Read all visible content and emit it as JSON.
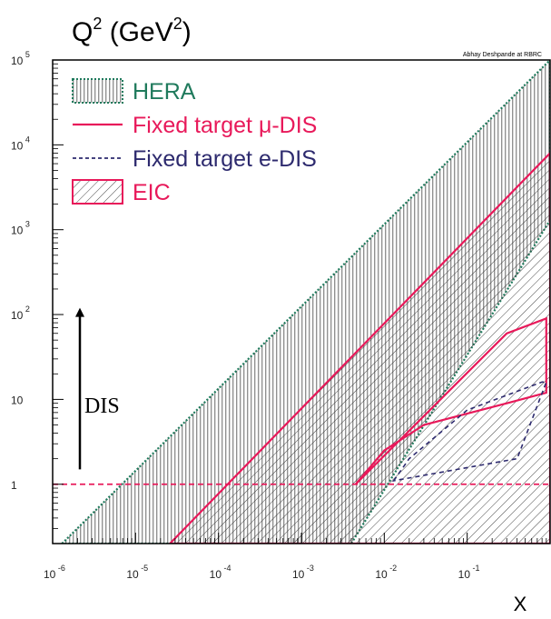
{
  "chart_data": {
    "type": "area",
    "title": "Q",
    "title_sup1": "2",
    "title_unit_pre": " (GeV",
    "title_sup2": "2",
    "title_unit_post": ")",
    "xlabel": "X",
    "ylabel": "",
    "credit": "Abhay Deshpande at RBRC",
    "x_scale": "log",
    "y_scale": "log",
    "xlim": [
      1e-06,
      1
    ],
    "ylim": [
      0.2,
      100000
    ],
    "x_ticks": [
      {
        "value": 1e-06,
        "base": "10",
        "exp": "-6"
      },
      {
        "value": 1e-05,
        "base": "10",
        "exp": "-5"
      },
      {
        "value": 0.0001,
        "base": "10",
        "exp": "-4"
      },
      {
        "value": 0.001,
        "base": "10",
        "exp": "-3"
      },
      {
        "value": 0.01,
        "base": "10",
        "exp": "-2"
      },
      {
        "value": 0.1,
        "base": "10",
        "exp": "-1"
      }
    ],
    "y_ticks": [
      {
        "value": 1,
        "base": "1",
        "exp": ""
      },
      {
        "value": 10,
        "base": "10",
        "exp": ""
      },
      {
        "value": 100,
        "base": "10",
        "exp": "2"
      },
      {
        "value": 1000,
        "base": "10",
        "exp": "3"
      },
      {
        "value": 10000,
        "base": "10",
        "exp": "4"
      },
      {
        "value": 100000,
        "base": "10",
        "exp": "5"
      }
    ],
    "legend": [
      {
        "label": "HERA",
        "style": "vertical-hatch",
        "color": "#1f7a5c"
      },
      {
        "label": "Fixed target μ-DIS",
        "style": "solid-line",
        "color": "#e8195a"
      },
      {
        "label": "Fixed target e-DIS",
        "style": "dashed-line",
        "color": "#2d2a6e"
      },
      {
        "label": "EIC",
        "style": "diagonal-hatch",
        "color": "#e8195a"
      }
    ],
    "legend_position": "top-left",
    "series": [
      {
        "name": "HERA",
        "points": [
          [
            1.3e-06,
            0.2
          ],
          [
            1,
            100000
          ],
          [
            1,
            1300
          ],
          [
            0.004,
            0.2
          ]
        ]
      },
      {
        "name": "EIC",
        "points": [
          [
            2.6e-05,
            0.2
          ],
          [
            1,
            8000
          ],
          [
            1,
            0.2
          ]
        ]
      },
      {
        "name": "Fixed target μ-DIS",
        "points": [
          [
            0.0045,
            1
          ],
          [
            0.3,
            60
          ],
          [
            0.9,
            90
          ],
          [
            0.9,
            12
          ],
          [
            0.3,
            9
          ],
          [
            0.03,
            5
          ],
          [
            0.01,
            2.5
          ],
          [
            0.0045,
            1
          ]
        ]
      },
      {
        "name": "Fixed target e-DIS",
        "points": [
          [
            0.013,
            1.1
          ],
          [
            0.02,
            2
          ],
          [
            0.1,
            7.5
          ],
          [
            0.8,
            16
          ],
          [
            0.9,
            16
          ],
          [
            0.4,
            2
          ],
          [
            0.013,
            1.1
          ]
        ]
      }
    ],
    "reference_line": {
      "y": 1,
      "style": "dashed",
      "color": "#e8195a"
    },
    "annotation": {
      "text": "DIS",
      "arrow": "up",
      "x": 3e-06,
      "y_from": 1.5,
      "y_to": 120
    }
  }
}
